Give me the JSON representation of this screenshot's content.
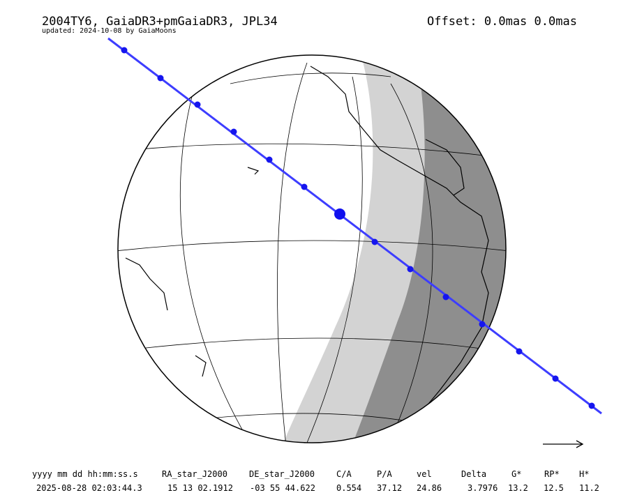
{
  "header": {
    "title": "2004TY6, GaiaDR3+pmGaiaDR3, JPL34",
    "subtitle": "updated: 2024-10-08 by GaiaMoons",
    "offset": "Offset: 0.0mas 0.0mas"
  },
  "table": {
    "headers": [
      "yyyy mm dd hh:mm:ss.s",
      "RA_star_J2000",
      "DE_star_J2000",
      "C/A",
      "P/A",
      "vel",
      "Delta",
      "G*",
      "RP*",
      "H*"
    ],
    "rows": [
      [
        "2025-08-28 02:03:44.3",
        "15 13 02.1912",
        "-03 55 44.622",
        "0.554",
        "37.12",
        "24.86",
        "3.7976",
        "13.2",
        "12.5",
        "11.2"
      ]
    ]
  }
}
